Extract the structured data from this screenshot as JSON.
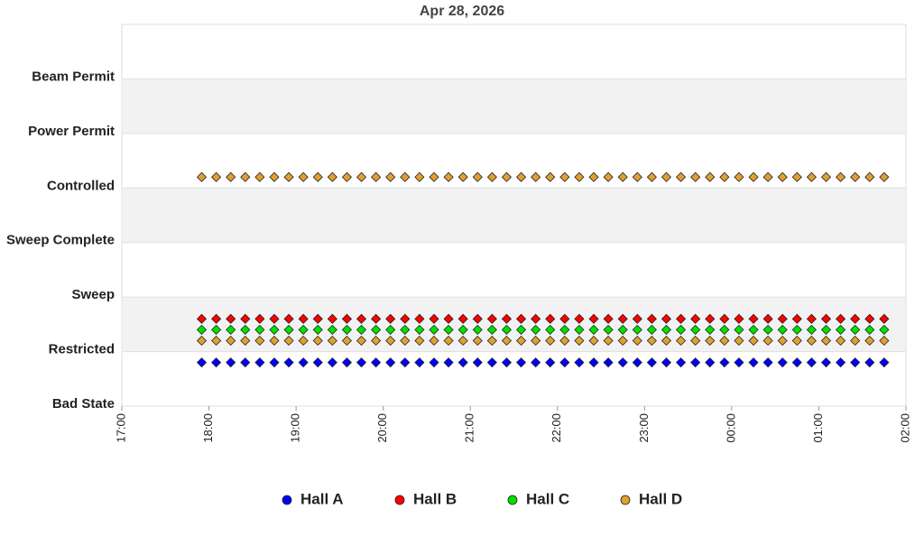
{
  "chart_data": {
    "type": "scatter",
    "title": "Apr 28, 2026",
    "x": [
      "17:55",
      "18:05",
      "18:15",
      "18:25",
      "18:35",
      "18:45",
      "18:55",
      "19:05",
      "19:15",
      "19:25",
      "19:35",
      "19:45",
      "19:55",
      "20:05",
      "20:15",
      "20:25",
      "20:35",
      "20:45",
      "20:55",
      "21:05",
      "21:15",
      "21:25",
      "21:35",
      "21:45",
      "21:55",
      "22:05",
      "22:15",
      "22:25",
      "22:35",
      "22:45",
      "22:55",
      "23:05",
      "23:15",
      "23:25",
      "23:35",
      "23:45",
      "23:55",
      "00:05",
      "00:15",
      "00:25",
      "00:35",
      "00:45",
      "00:55",
      "01:05",
      "01:15",
      "01:25",
      "01:35",
      "01:45"
    ],
    "xlim": [
      "17:00",
      "02:00"
    ],
    "xticks": [
      "17:00",
      "18:00",
      "19:00",
      "20:00",
      "21:00",
      "22:00",
      "23:00",
      "00:00",
      "01:00",
      "02:00"
    ],
    "ylim": [
      0,
      7
    ],
    "yticks": [
      {
        "value": 0,
        "label": "Bad State"
      },
      {
        "value": 1,
        "label": "Restricted"
      },
      {
        "value": 2,
        "label": "Sweep"
      },
      {
        "value": 3,
        "label": "Sweep Complete"
      },
      {
        "value": 4,
        "label": "Controlled"
      },
      {
        "value": 5,
        "label": "Power Permit"
      },
      {
        "value": 6,
        "label": "Beam Permit"
      }
    ],
    "grid": true,
    "legend": "bottom",
    "series": [
      {
        "name": "Hall A",
        "color": "#0000ff",
        "values": [
          0.8,
          0.8,
          0.8,
          0.8,
          0.8,
          0.8,
          0.8,
          0.8,
          0.8,
          0.8,
          0.8,
          0.8,
          0.8,
          0.8,
          0.8,
          0.8,
          0.8,
          0.8,
          0.8,
          0.8,
          0.8,
          0.8,
          0.8,
          0.8,
          0.8,
          0.8,
          0.8,
          0.8,
          0.8,
          0.8,
          0.8,
          0.8,
          0.8,
          0.8,
          0.8,
          0.8,
          0.8,
          0.8,
          0.8,
          0.8,
          0.8,
          0.8,
          0.8,
          0.8,
          0.8,
          0.8,
          0.8,
          0.8
        ]
      },
      {
        "name": "Hall B",
        "color": "#ff0000",
        "values": [
          1.6,
          1.6,
          1.6,
          1.6,
          1.6,
          1.6,
          1.6,
          1.6,
          1.6,
          1.6,
          1.6,
          1.6,
          1.6,
          1.6,
          1.6,
          1.6,
          1.6,
          1.6,
          1.6,
          1.6,
          1.6,
          1.6,
          1.6,
          1.6,
          1.6,
          1.6,
          1.6,
          1.6,
          1.6,
          1.6,
          1.6,
          1.6,
          1.6,
          1.6,
          1.6,
          1.6,
          1.6,
          1.6,
          1.6,
          1.6,
          1.6,
          1.6,
          1.6,
          1.6,
          1.6,
          1.6,
          1.6,
          1.6
        ]
      },
      {
        "name": "Hall C",
        "color": "#00e000",
        "values": [
          1.4,
          1.4,
          1.4,
          1.4,
          1.4,
          1.4,
          1.4,
          1.4,
          1.4,
          1.4,
          1.4,
          1.4,
          1.4,
          1.4,
          1.4,
          1.4,
          1.4,
          1.4,
          1.4,
          1.4,
          1.4,
          1.4,
          1.4,
          1.4,
          1.4,
          1.4,
          1.4,
          1.4,
          1.4,
          1.4,
          1.4,
          1.4,
          1.4,
          1.4,
          1.4,
          1.4,
          1.4,
          1.4,
          1.4,
          1.4,
          1.4,
          1.4,
          1.4,
          1.4,
          1.4,
          1.4,
          1.4,
          1.4
        ]
      },
      {
        "name": "Hall D",
        "color": "#e0a030",
        "values": [
          [
            4.2,
            1.2
          ],
          [
            4.2,
            1.2
          ],
          [
            4.2,
            1.2
          ],
          [
            4.2,
            1.2
          ],
          [
            4.2,
            1.2
          ],
          [
            4.2,
            1.2
          ],
          [
            4.2,
            1.2
          ],
          [
            4.2,
            1.2
          ],
          [
            4.2,
            1.2
          ],
          [
            4.2,
            1.2
          ],
          [
            4.2,
            1.2
          ],
          [
            4.2,
            1.2
          ],
          [
            4.2,
            1.2
          ],
          [
            4.2,
            1.2
          ],
          [
            4.2,
            1.2
          ],
          [
            4.2,
            1.2
          ],
          [
            4.2,
            1.2
          ],
          [
            4.2,
            1.2
          ],
          [
            4.2,
            1.2
          ],
          [
            4.2,
            1.2
          ],
          [
            4.2,
            1.2
          ],
          [
            4.2,
            1.2
          ],
          [
            4.2,
            1.2
          ],
          [
            4.2,
            1.2
          ],
          [
            4.2,
            1.2
          ],
          [
            4.2,
            1.2
          ],
          [
            4.2,
            1.2
          ],
          [
            4.2,
            1.2
          ],
          [
            4.2,
            1.2
          ],
          [
            4.2,
            1.2
          ],
          [
            4.2,
            1.2
          ],
          [
            4.2,
            1.2
          ],
          [
            4.2,
            1.2
          ],
          [
            4.2,
            1.2
          ],
          [
            4.2,
            1.2
          ],
          [
            4.2,
            1.2
          ],
          [
            4.2,
            1.2
          ],
          [
            4.2,
            1.2
          ],
          [
            4.2,
            1.2
          ],
          [
            4.2,
            1.2
          ],
          [
            4.2,
            1.2
          ],
          [
            4.2,
            1.2
          ],
          [
            4.2,
            1.2
          ],
          [
            4.2,
            1.2
          ],
          [
            4.2,
            1.2
          ],
          [
            4.2,
            1.2
          ],
          [
            4.2,
            1.2
          ],
          [
            4.2,
            1.2
          ]
        ]
      }
    ]
  }
}
